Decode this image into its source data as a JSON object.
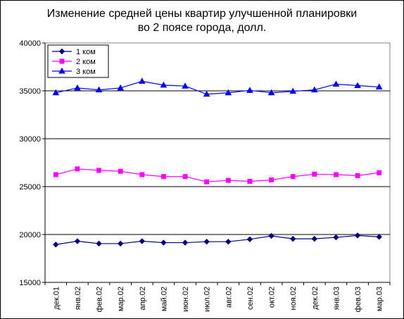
{
  "chart_data": {
    "type": "line",
    "title": [
      "Изменение средней цены квартир улучшенной планировки",
      "во 2 поясе города, долл."
    ],
    "categories": [
      "дек.01",
      "янв.02",
      "фев.02",
      "мар.02",
      "апр.02",
      "май.02",
      "июн.02",
      "июл.02",
      "авг.02",
      "сен.02",
      "окт.02",
      "ноя.02",
      "дек.02",
      "янв.03",
      "фев.03",
      "мар.03"
    ],
    "ylim": [
      15000,
      40000
    ],
    "yticks": [
      15000,
      20000,
      25000,
      30000,
      35000,
      40000
    ],
    "ytick_labels": [
      "15000",
      "20000",
      "25000",
      "30000",
      "35000",
      "40000"
    ],
    "grid": true,
    "legend_position": "top-left",
    "series": [
      {
        "name": "1 ком",
        "color": "#000080",
        "marker": "diamond",
        "values": [
          18950,
          19300,
          19050,
          19050,
          19300,
          19150,
          19150,
          19250,
          19250,
          19500,
          19850,
          19550,
          19550,
          19700,
          19900,
          19750
        ]
      },
      {
        "name": "2 ком",
        "color": "#FF00FF",
        "marker": "square",
        "values": [
          26250,
          26850,
          26700,
          26600,
          26250,
          26050,
          26050,
          25500,
          25650,
          25550,
          25700,
          26050,
          26300,
          26250,
          26150,
          26450
        ]
      },
      {
        "name": "3 ком",
        "color": "#0000FF",
        "marker": "triangle",
        "values": [
          34800,
          35300,
          35100,
          35300,
          36000,
          35600,
          35500,
          34650,
          34800,
          35050,
          34800,
          34950,
          35100,
          35700,
          35550,
          35400
        ]
      }
    ]
  }
}
